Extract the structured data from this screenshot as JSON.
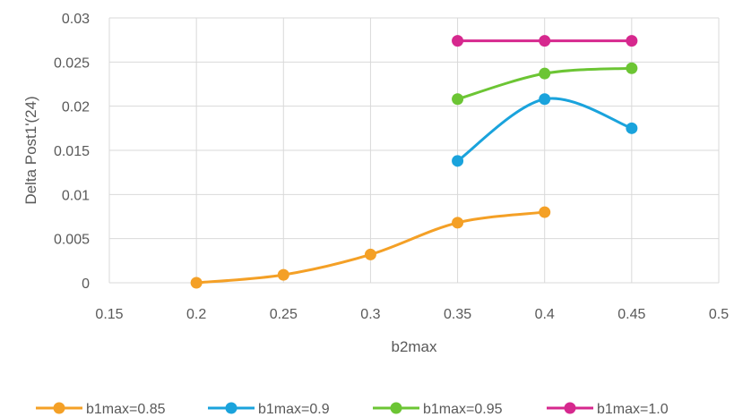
{
  "chart_data": {
    "type": "line",
    "title": "",
    "xlabel": "b2max",
    "ylabel": "Delta Post1'(24)",
    "xlim": [
      0.15,
      0.5
    ],
    "ylim": [
      0,
      0.03
    ],
    "x_ticks": [
      0.15,
      0.2,
      0.25,
      0.3,
      0.35,
      0.4,
      0.45,
      0.5
    ],
    "y_ticks": [
      0,
      0.005,
      0.01,
      0.015,
      0.02,
      0.025,
      0.03
    ],
    "x_tick_labels": [
      "0.15",
      "0.2",
      "0.25",
      "0.3",
      "0.35",
      "0.4",
      "0.45",
      "0.5"
    ],
    "y_tick_labels": [
      "0",
      "0.005",
      "0.01",
      "0.015",
      "0.02",
      "0.025",
      "0.03"
    ],
    "grid": true,
    "legend_position": "bottom",
    "smooth": true,
    "series": [
      {
        "name": "b1max=0.85",
        "color": "#F4A026",
        "points": [
          [
            0.2,
            0.0
          ],
          [
            0.25,
            0.0009
          ],
          [
            0.3,
            0.0032
          ],
          [
            0.35,
            0.0068
          ],
          [
            0.4,
            0.008
          ]
        ]
      },
      {
        "name": "b1max=0.9",
        "color": "#1AA3DC",
        "points": [
          [
            0.35,
            0.0138
          ],
          [
            0.4,
            0.0208
          ],
          [
            0.45,
            0.0175
          ]
        ]
      },
      {
        "name": "b1max=0.95",
        "color": "#6CC534",
        "points": [
          [
            0.35,
            0.0208
          ],
          [
            0.4,
            0.0237
          ],
          [
            0.45,
            0.0243
          ]
        ]
      },
      {
        "name": "b1max=1.0",
        "color": "#D6288E",
        "points": [
          [
            0.35,
            0.0274
          ],
          [
            0.4,
            0.0274
          ],
          [
            0.45,
            0.0274
          ]
        ]
      }
    ]
  }
}
